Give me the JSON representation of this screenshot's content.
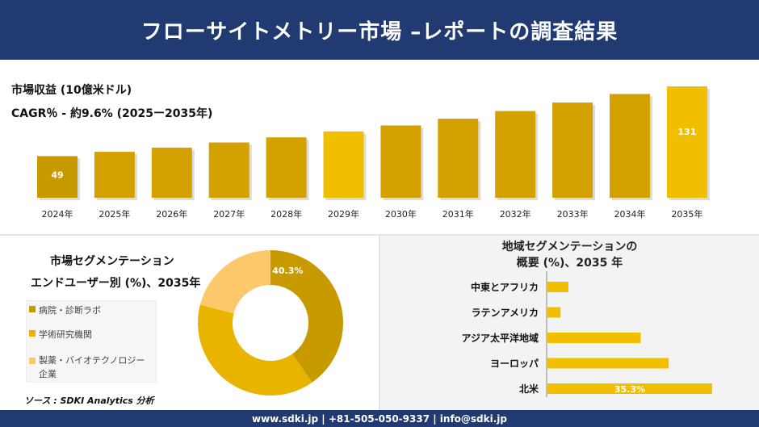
{
  "header": {
    "title": "フローサイトメトリー市場 –レポートの調査結果"
  },
  "revenue": {
    "label": "市場収益 (10億米ドル)",
    "cagr": "CAGR％ - 約9.6% (2025ー2035年)"
  },
  "segmentation": {
    "title_line1": "市場セグメンテーション",
    "title_line2": "エンドユーザー別 (%)、2035年",
    "legend": [
      {
        "label": "病院・診断ラボ",
        "color": "#c79a00"
      },
      {
        "label": "学術研究機関",
        "color": "#e8b400"
      },
      {
        "label": "製薬・バイオテクノロジー企業",
        "color": "#fbc96a"
      }
    ]
  },
  "regional": {
    "title_line1": "地域セグメンテーションの",
    "title_line2": "概要 (%)、2035 年"
  },
  "source": "ソース : SDKI Analytics 分析",
  "footer": {
    "contact": "www.sdki.jp | +81-505-050-9337 | info@sdki.jp"
  },
  "chart_data": [
    {
      "type": "bar",
      "categories": [
        "2024年",
        "2025年",
        "2026年",
        "2027年",
        "2028年",
        "2029年",
        "2030年",
        "2031年",
        "2032年",
        "2033年",
        "2034年",
        "2035年"
      ],
      "values": [
        49,
        54,
        59,
        65,
        71,
        78,
        85,
        93,
        102,
        112,
        122,
        131
      ],
      "data_labels": {
        "0": "49",
        "11": "131"
      },
      "colors": [
        "#c79a00",
        "#d4a200",
        "#d4a200",
        "#d4a200",
        "#d4a200",
        "#f2bf00",
        "#d4a200",
        "#d4a200",
        "#d4a200",
        "#d4a200",
        "#d4a200",
        "#f2bf00"
      ],
      "grid": false,
      "legend": "none"
    },
    {
      "type": "pie",
      "subtype": "donut",
      "categories": [
        "病院・診断ラボ",
        "学術研究機関",
        "製薬・バイオテクノロジー企業"
      ],
      "values": [
        40.3,
        38.7,
        21.0
      ],
      "data_labels": {
        "0": "40.3%"
      },
      "colors": [
        "#c79a00",
        "#e8b400",
        "#fbc96a"
      ]
    },
    {
      "type": "bar",
      "orientation": "horizontal",
      "categories": [
        "中東とアフリカ",
        "ラテンアメリカ",
        "アジア太平洋地域",
        "ヨーロッパ",
        "北米"
      ],
      "values": [
        4.5,
        2.8,
        20.0,
        26.0,
        35.3
      ],
      "data_labels": {
        "4": "35.3%"
      },
      "color": "#f2bf00",
      "xlim": [
        0,
        40
      ]
    }
  ]
}
